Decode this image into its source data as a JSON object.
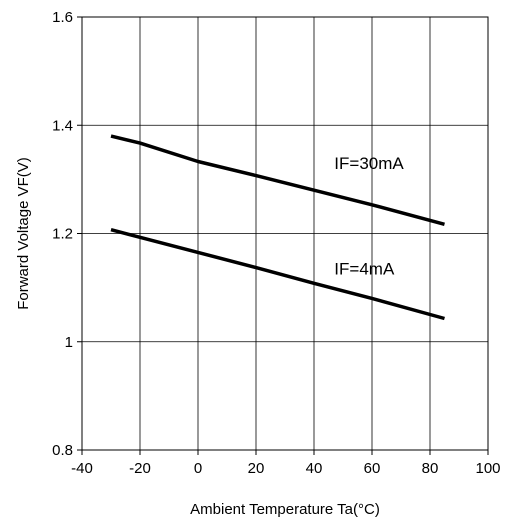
{
  "chart_data": {
    "type": "line",
    "title": "",
    "xlabel": "Ambient Temperature Ta(°C)",
    "ylabel": "Forward Voltage VF(V)",
    "xlim": [
      -40,
      100
    ],
    "ylim": [
      0.8,
      1.6
    ],
    "xticks": [
      -40,
      -20,
      0,
      20,
      40,
      60,
      80,
      100
    ],
    "yticks": [
      0.8,
      1,
      1.2,
      1.4,
      1.6
    ],
    "xtick_labels": [
      "-40",
      "-20",
      "0",
      "20",
      "40",
      "60",
      "80",
      "100"
    ],
    "ytick_labels": [
      "0.8",
      "1",
      "1.2",
      "1.4",
      "1.6"
    ],
    "grid": true,
    "series": [
      {
        "name": "IF=30mA",
        "x": [
          -30,
          -20,
          0,
          20,
          40,
          60,
          85
        ],
        "y": [
          1.38,
          1.367,
          1.333,
          1.307,
          1.28,
          1.253,
          1.217
        ]
      },
      {
        "name": "IF=4mA",
        "x": [
          -30,
          -20,
          0,
          20,
          40,
          60,
          85
        ],
        "y": [
          1.207,
          1.193,
          1.165,
          1.137,
          1.108,
          1.08,
          1.043
        ]
      }
    ],
    "annotations": [
      {
        "text": "IF=30mA",
        "x": 47,
        "y": 1.33
      },
      {
        "text": "IF=4mA",
        "x": 47,
        "y": 1.135
      }
    ],
    "colors": {
      "line": "#000000",
      "grid": "#000000"
    }
  }
}
